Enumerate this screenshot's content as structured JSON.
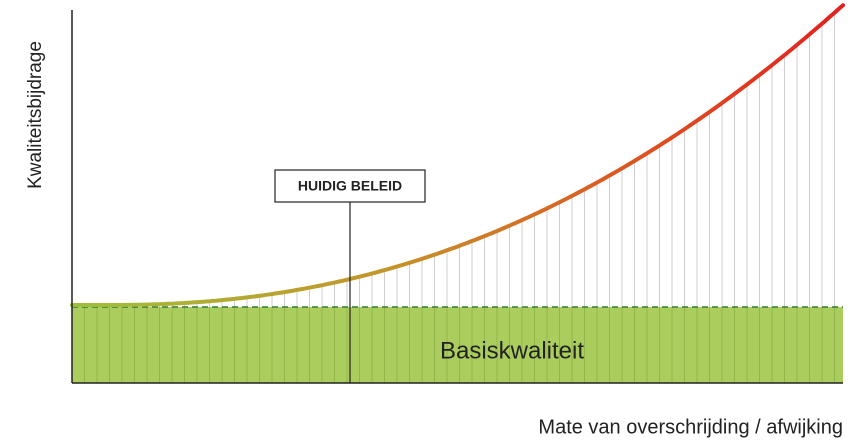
{
  "y_axis_label": "Kwaliteitsbijdrage",
  "x_axis_label": "Mate van overschrijding / afwijking",
  "callout": "HUIDIG BELEID",
  "band_label": "Basiskwaliteit"
}
